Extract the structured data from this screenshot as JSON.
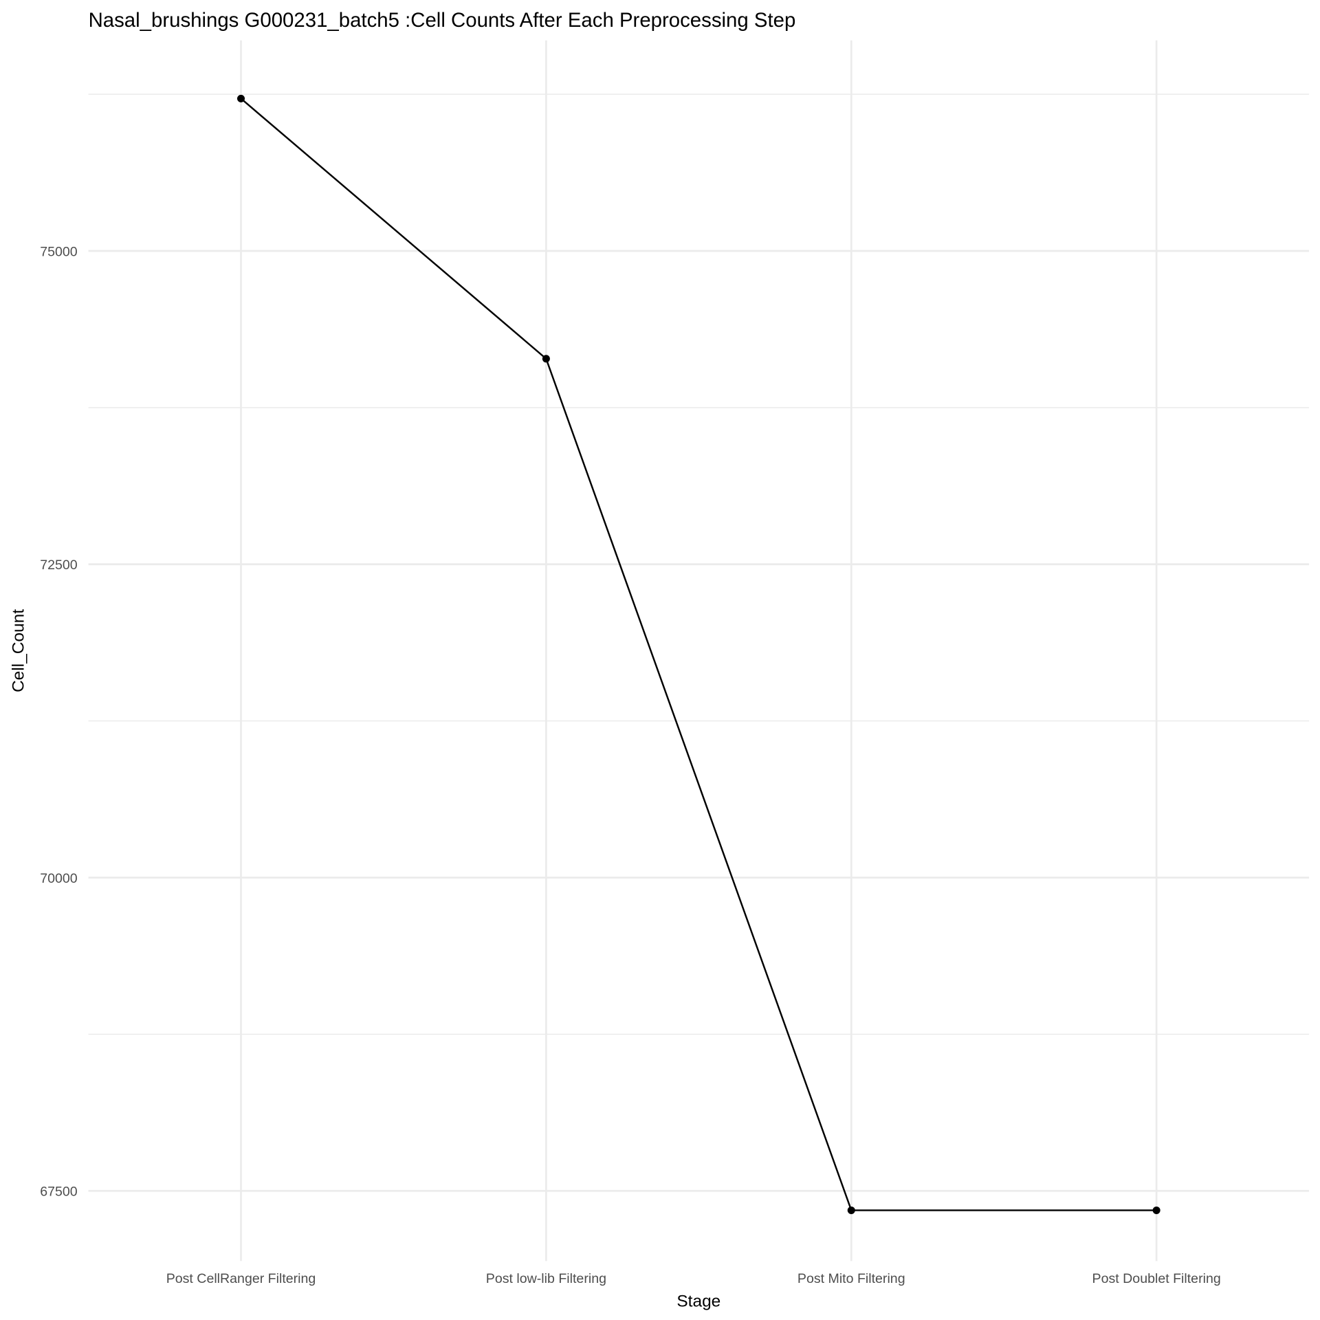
{
  "chart_data": {
    "type": "line",
    "title": "Nasal_brushings G000231_batch5 :Cell Counts After Each Preprocessing Step",
    "xlabel": "Stage",
    "ylabel": "Cell_Count",
    "categories": [
      "Post CellRanger Filtering",
      "Post low-lib Filtering",
      "Post Mito Filtering",
      "Post Doublet Filtering"
    ],
    "values": [
      76216,
      74140,
      67345,
      67345
    ],
    "yticks": [
      67500,
      70000,
      72500,
      75000
    ],
    "ytick_labels": [
      "67500",
      "70000",
      "72500",
      "75000"
    ],
    "ylim": [
      66940,
      76680
    ],
    "grid": true,
    "line_color": "#000000",
    "grid_color": "#ebebeb"
  }
}
